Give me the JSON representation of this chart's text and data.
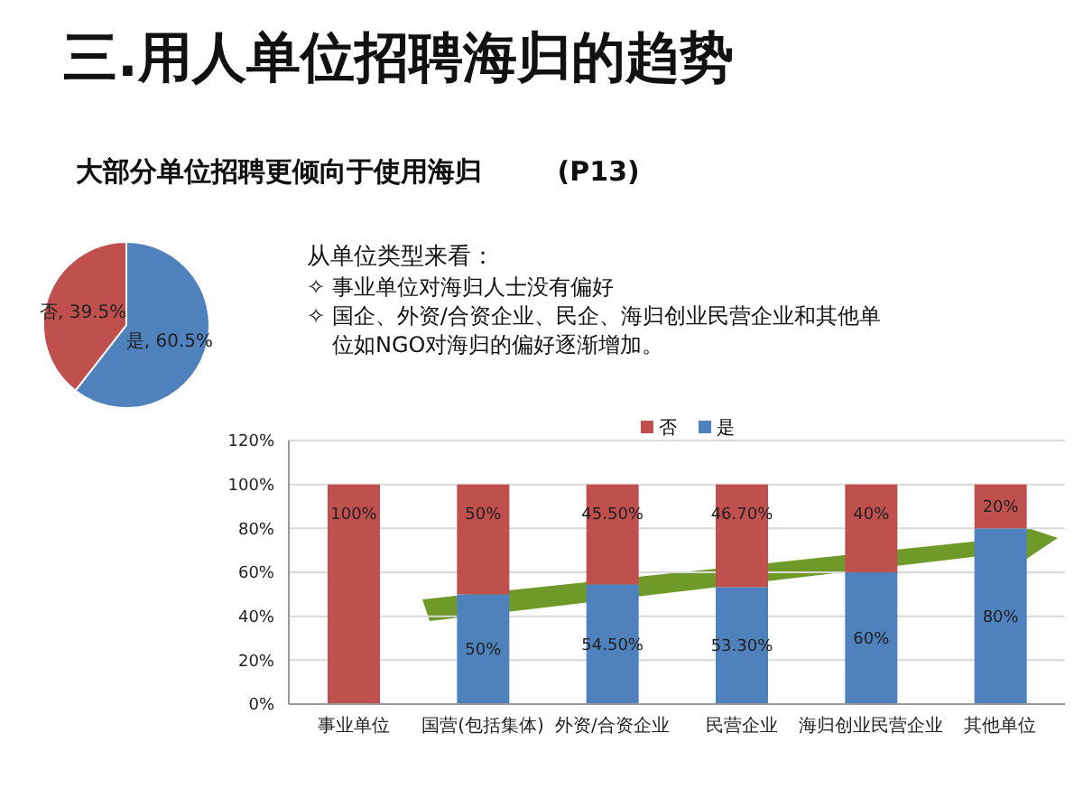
{
  "chart_data": [
    {
      "type": "pie",
      "title": "三.用人单位招聘海归的趋势",
      "subtitle": "大部分单位招聘更倾向于使用海归        (P13)",
      "categories": [
        "是",
        "否"
      ],
      "values": [
        60.5,
        39.5
      ],
      "colors": [
        "#4f81bd",
        "#c0504d"
      ],
      "value_labels": [
        "60.5%",
        "39.5%"
      ]
    },
    {
      "type": "bar",
      "stacked": true,
      "annotations": [
        "从单位类型来看：",
        "✧  事业单位对海归人士没有偏好",
        "✧  国企、外资/合资企业、民企、海归创业民营企业和其他单位如NGO对海归的偏好逐渐增加。"
      ],
      "categories": [
        "事业单位",
        "国营(包括集体)",
        "外资/合资企业",
        "民营企业",
        "海归创业民营企业",
        "其他单位"
      ],
      "series": [
        {
          "name": "是",
          "color": "#4f81bd",
          "values": [
            0,
            50,
            54.5,
            53.3,
            60,
            80
          ],
          "value_labels": [
            null,
            "50%",
            "54.50%",
            "53.30%",
            "60%",
            "80%"
          ]
        },
        {
          "name": "否",
          "color": "#c0504d",
          "values": [
            100,
            50,
            45.5,
            46.7,
            40,
            20
          ],
          "value_labels": [
            "100%",
            "50%",
            "45.50%",
            "46.70%",
            "40%",
            "20%"
          ]
        }
      ],
      "ylim": [
        0,
        120
      ],
      "yticks": [
        {
          "value": 0,
          "label": "0%"
        },
        {
          "value": 20,
          "label": "20%"
        },
        {
          "value": 40,
          "label": "40%"
        },
        {
          "value": 60,
          "label": "60%"
        },
        {
          "value": 80,
          "label": "80%"
        },
        {
          "value": 100,
          "label": "100%"
        },
        {
          "value": 120,
          "label": "120%"
        }
      ],
      "grid": "y",
      "legend": "top"
    }
  ]
}
